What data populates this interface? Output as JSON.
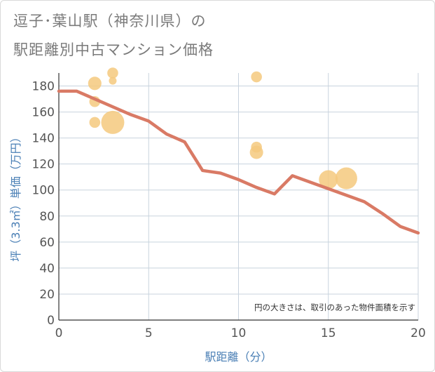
{
  "title_line1": "逗子･葉山駅（神奈川県）の",
  "title_line2": "駅距離別中古マンション価格",
  "chart_data": {
    "type": "scatter",
    "title": "逗子･葉山駅（神奈川県）の駅距離別中古マンション価格",
    "xlabel": "駅距離（分）",
    "ylabel": "坪（3.3㎡）単価（万円）",
    "xlim": [
      0,
      20
    ],
    "ylim": [
      0,
      190
    ],
    "xticks": [
      0,
      5,
      10,
      15,
      20
    ],
    "yticks": [
      0,
      20,
      40,
      60,
      80,
      100,
      120,
      140,
      160,
      180
    ],
    "grid": true,
    "annotation": "円の大きさは、取引のあった物件面積を示す",
    "colors": {
      "bubble": "#f5c97e",
      "line": "#d97a65",
      "grid": "#c8d3de",
      "axis_title": "#4a7fb5"
    },
    "bubbles": [
      {
        "x": 2,
        "y": 182,
        "size": 3
      },
      {
        "x": 2,
        "y": 168,
        "size": 2
      },
      {
        "x": 2,
        "y": 152,
        "size": 2
      },
      {
        "x": 3,
        "y": 190,
        "size": 2
      },
      {
        "x": 3,
        "y": 184,
        "size": 1
      },
      {
        "x": 3,
        "y": 152,
        "size": 9
      },
      {
        "x": 11,
        "y": 187,
        "size": 2
      },
      {
        "x": 11,
        "y": 133,
        "size": 2
      },
      {
        "x": 11,
        "y": 129,
        "size": 3
      },
      {
        "x": 15,
        "y": 108,
        "size": 6
      },
      {
        "x": 16,
        "y": 109,
        "size": 8
      }
    ],
    "trend": {
      "x": [
        0,
        1,
        2,
        3,
        4,
        5,
        6,
        7,
        8,
        9,
        10,
        11,
        12,
        13,
        14,
        15,
        16,
        17,
        18,
        19,
        20
      ],
      "y": [
        176,
        176,
        170,
        164,
        158,
        153,
        143,
        137,
        115,
        113,
        108,
        102,
        97,
        111,
        106,
        101,
        96,
        91,
        82,
        72,
        67
      ]
    }
  }
}
